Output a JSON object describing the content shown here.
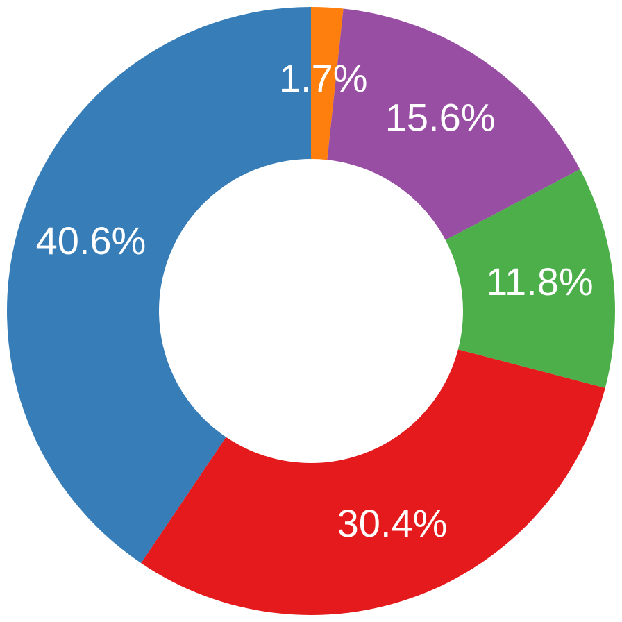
{
  "chart_data": {
    "type": "donut",
    "values": [
      1.7,
      15.6,
      11.8,
      30.4,
      40.6
    ],
    "value_labels": [
      "1.7%",
      "15.6%",
      "11.8%",
      "30.4%",
      "40.6%"
    ],
    "colors": [
      "#ff7f0e",
      "#984ea3",
      "#4daf4a",
      "#e41a1c",
      "#377eb8"
    ]
  }
}
